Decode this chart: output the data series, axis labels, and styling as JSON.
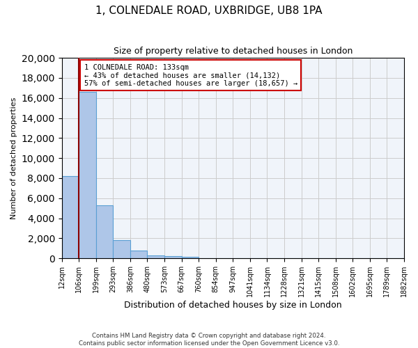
{
  "title": "1, COLNEDALE ROAD, UXBRIDGE, UB8 1PA",
  "subtitle": "Size of property relative to detached houses in London",
  "xlabel": "Distribution of detached houses by size in London",
  "ylabel": "Number of detached properties",
  "bar_values": [
    8200,
    16600,
    5300,
    1850,
    780,
    300,
    200,
    150,
    0,
    0,
    0,
    0,
    0,
    0,
    0,
    0,
    0,
    0,
    0,
    0
  ],
  "bin_labels": [
    "12sqm",
    "106sqm",
    "199sqm",
    "293sqm",
    "386sqm",
    "480sqm",
    "573sqm",
    "667sqm",
    "760sqm",
    "854sqm",
    "947sqm",
    "1041sqm",
    "1134sqm",
    "1228sqm",
    "1321sqm",
    "1415sqm",
    "1508sqm",
    "1602sqm",
    "1695sqm",
    "1789sqm",
    "1882sqm"
  ],
  "bar_color": "#aec6e8",
  "bar_edge_color": "#5a9fd4",
  "vline_x": 1,
  "vline_color": "#8b0000",
  "ylim": [
    0,
    20000
  ],
  "yticks": [
    0,
    2000,
    4000,
    6000,
    8000,
    10000,
    12000,
    14000,
    16000,
    18000,
    20000
  ],
  "annotation_title": "1 COLNEDALE ROAD: 133sqm",
  "annotation_line1": "← 43% of detached houses are smaller (14,132)",
  "annotation_line2": "57% of semi-detached houses are larger (18,657) →",
  "annotation_box_color": "#ffffff",
  "annotation_box_edgecolor": "#cc0000",
  "footer_line1": "Contains HM Land Registry data © Crown copyright and database right 2024.",
  "footer_line2": "Contains public sector information licensed under the Open Government Licence v3.0.",
  "bg_color": "#f0f4fa",
  "grid_color": "#cccccc"
}
